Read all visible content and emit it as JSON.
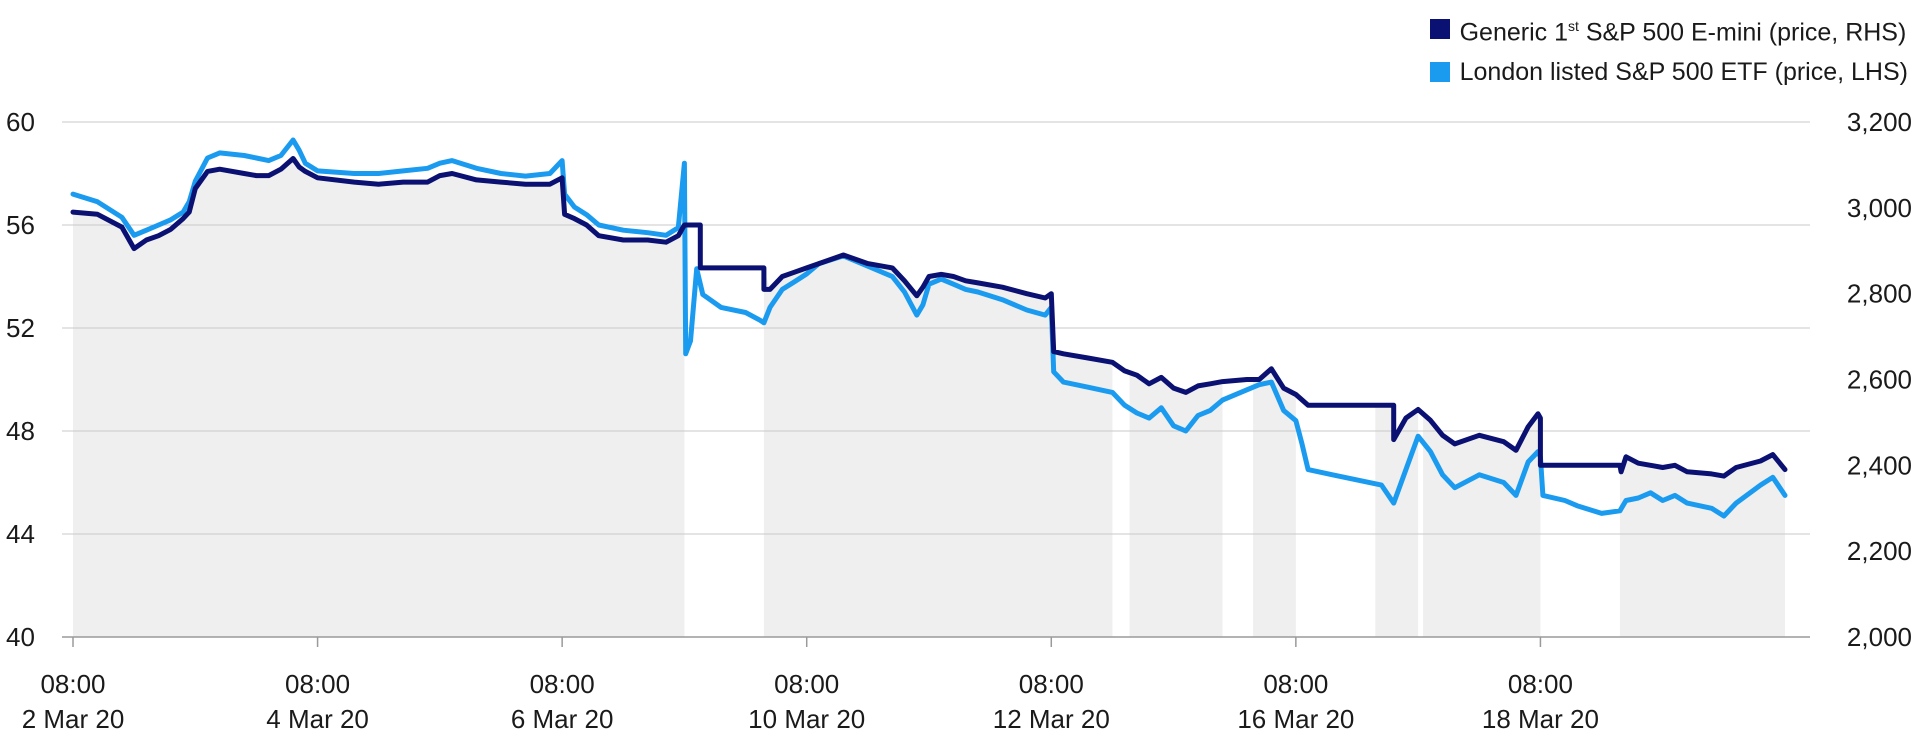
{
  "legend": [
    {
      "base": "Generic 1",
      "sup": "st",
      "rest": " S&P 500 E-mini (price, RHS)",
      "color": "#0a1172"
    },
    {
      "text": "London listed S&P 500 ETF (price, LHS)",
      "color": "#1b9bef"
    }
  ],
  "colors": {
    "grid": "#c8c8c8",
    "area": "#efefef",
    "axis": "#9a9a9a"
  },
  "chart_data": {
    "type": "line",
    "x_ticks": [
      {
        "day": 0,
        "time": "08:00",
        "date": "2 Mar 20"
      },
      {
        "day": 2,
        "time": "08:00",
        "date": "4 Mar 20"
      },
      {
        "day": 4,
        "time": "08:00",
        "date": "6 Mar 20"
      },
      {
        "day": 6,
        "time": "08:00",
        "date": "10 Mar 20"
      },
      {
        "day": 8,
        "time": "08:00",
        "date": "12 Mar 20"
      },
      {
        "day": 10,
        "time": "08:00",
        "date": "16 Mar 20"
      },
      {
        "day": 12,
        "time": "08:00",
        "date": "18 Mar 20"
      }
    ],
    "xlim": [
      0,
      14
    ],
    "y_left": {
      "ylim": [
        40,
        60
      ],
      "ticks": [
        "40",
        "44",
        "48",
        "52",
        "56",
        "60"
      ]
    },
    "y_right": {
      "ylim": [
        2000,
        3200
      ],
      "ticks": [
        "2,000",
        "2,200",
        "2,400",
        "2,600",
        "2,800",
        "3,000",
        "3,200"
      ]
    },
    "grid": true,
    "legend_position": "top-right",
    "series": [
      {
        "name": "Generic 1st S&P 500 E-mini (price, RHS)",
        "axis": "right",
        "points": [
          [
            0,
            2990
          ],
          [
            0.2,
            2985
          ],
          [
            0.4,
            2955
          ],
          [
            0.45,
            2930
          ],
          [
            0.5,
            2905
          ],
          [
            0.6,
            2925
          ],
          [
            0.7,
            2935
          ],
          [
            0.8,
            2950
          ],
          [
            0.9,
            2975
          ],
          [
            0.95,
            2990
          ],
          [
            1.0,
            3045
          ],
          [
            1.1,
            3085
          ],
          [
            1.2,
            3090
          ],
          [
            1.4,
            3080
          ],
          [
            1.5,
            3075
          ],
          [
            1.6,
            3075
          ],
          [
            1.7,
            3090
          ],
          [
            1.8,
            3115
          ],
          [
            1.85,
            3095
          ],
          [
            1.9,
            3085
          ],
          [
            2.0,
            3070
          ],
          [
            2.3,
            3060
          ],
          [
            2.5,
            3055
          ],
          [
            2.7,
            3060
          ],
          [
            2.9,
            3060
          ],
          [
            3.0,
            3075
          ],
          [
            3.1,
            3080
          ],
          [
            3.3,
            3065
          ],
          [
            3.5,
            3060
          ],
          [
            3.7,
            3055
          ],
          [
            3.9,
            3055
          ],
          [
            4.0,
            3070
          ],
          [
            4.02,
            2985
          ],
          [
            4.1,
            2975
          ],
          [
            4.2,
            2960
          ],
          [
            4.3,
            2935
          ],
          [
            4.5,
            2925
          ],
          [
            4.7,
            2925
          ],
          [
            4.85,
            2920
          ],
          [
            4.95,
            2935
          ],
          [
            5.0,
            2960
          ],
          [
            5.13,
            2960
          ],
          [
            5.13,
            2860
          ],
          [
            5.2,
            2860
          ],
          [
            5.4,
            2860
          ],
          [
            5.6,
            2860
          ],
          [
            5.65,
            2860
          ],
          [
            5.65,
            2810
          ],
          [
            5.7,
            2810
          ],
          [
            5.8,
            2840
          ],
          [
            5.9,
            2850
          ],
          [
            6.0,
            2860
          ],
          [
            6.1,
            2870
          ],
          [
            6.3,
            2890
          ],
          [
            6.5,
            2870
          ],
          [
            6.7,
            2860
          ],
          [
            6.8,
            2830
          ],
          [
            6.9,
            2795
          ],
          [
            6.95,
            2815
          ],
          [
            7.0,
            2840
          ],
          [
            7.1,
            2845
          ],
          [
            7.2,
            2840
          ],
          [
            7.3,
            2830
          ],
          [
            7.4,
            2825
          ],
          [
            7.6,
            2815
          ],
          [
            7.8,
            2800
          ],
          [
            7.95,
            2790
          ],
          [
            8.0,
            2800
          ],
          [
            8.02,
            2665
          ],
          [
            8.1,
            2660
          ],
          [
            8.3,
            2650
          ],
          [
            8.5,
            2640
          ],
          [
            8.6,
            2620
          ],
          [
            8.7,
            2610
          ],
          [
            8.8,
            2590
          ],
          [
            8.9,
            2605
          ],
          [
            9.0,
            2580
          ],
          [
            9.1,
            2570
          ],
          [
            9.2,
            2585
          ],
          [
            9.3,
            2590
          ],
          [
            9.4,
            2595
          ],
          [
            9.6,
            2600
          ],
          [
            9.7,
            2600
          ],
          [
            9.8,
            2625
          ],
          [
            9.9,
            2580
          ],
          [
            10.0,
            2565
          ],
          [
            10.1,
            2540
          ],
          [
            10.3,
            2540
          ],
          [
            10.5,
            2540
          ],
          [
            10.7,
            2540
          ],
          [
            10.8,
            2540
          ],
          [
            10.8,
            2460
          ],
          [
            10.9,
            2510
          ],
          [
            11.0,
            2530
          ],
          [
            11.1,
            2505
          ],
          [
            11.2,
            2470
          ],
          [
            11.3,
            2450
          ],
          [
            11.5,
            2470
          ],
          [
            11.7,
            2455
          ],
          [
            11.8,
            2435
          ],
          [
            11.9,
            2490
          ],
          [
            11.98,
            2520
          ],
          [
            12.0,
            2510
          ],
          [
            12.0,
            2400
          ],
          [
            12.3,
            2400
          ],
          [
            12.5,
            2400
          ],
          [
            12.65,
            2400
          ],
          [
            12.66,
            2385
          ],
          [
            12.7,
            2420
          ],
          [
            12.8,
            2405
          ],
          [
            12.9,
            2400
          ],
          [
            13.0,
            2395
          ],
          [
            13.1,
            2400
          ],
          [
            13.2,
            2385
          ],
          [
            13.4,
            2380
          ],
          [
            13.5,
            2375
          ],
          [
            13.6,
            2395
          ],
          [
            13.8,
            2410
          ],
          [
            13.9,
            2425
          ],
          [
            14.0,
            2390
          ]
        ]
      },
      {
        "name": "London listed S&P 500 ETF (price, LHS)",
        "axis": "left",
        "points": [
          [
            0,
            57.2
          ],
          [
            0.2,
            56.9
          ],
          [
            0.4,
            56.3
          ],
          [
            0.5,
            55.6
          ],
          [
            0.6,
            55.8
          ],
          [
            0.7,
            56.0
          ],
          [
            0.8,
            56.2
          ],
          [
            0.9,
            56.5
          ],
          [
            0.95,
            56.9
          ],
          [
            1.0,
            57.7
          ],
          [
            1.1,
            58.6
          ],
          [
            1.2,
            58.8
          ],
          [
            1.4,
            58.7
          ],
          [
            1.5,
            58.6
          ],
          [
            1.6,
            58.5
          ],
          [
            1.7,
            58.7
          ],
          [
            1.8,
            59.3
          ],
          [
            1.85,
            58.9
          ],
          [
            1.9,
            58.4
          ],
          [
            2.0,
            58.1
          ],
          [
            2.3,
            58.0
          ],
          [
            2.5,
            58.0
          ],
          [
            2.7,
            58.1
          ],
          [
            2.9,
            58.2
          ],
          [
            3.0,
            58.4
          ],
          [
            3.1,
            58.5
          ],
          [
            3.3,
            58.2
          ],
          [
            3.5,
            58.0
          ],
          [
            3.7,
            57.9
          ],
          [
            3.9,
            58.0
          ],
          [
            4.0,
            58.5
          ],
          [
            4.02,
            57.2
          ],
          [
            4.1,
            56.7
          ],
          [
            4.2,
            56.4
          ],
          [
            4.3,
            56.0
          ],
          [
            4.5,
            55.8
          ],
          [
            4.7,
            55.7
          ],
          [
            4.85,
            55.6
          ],
          [
            4.95,
            55.9
          ],
          [
            5.0,
            58.4
          ],
          [
            5.01,
            51.0
          ],
          [
            5.05,
            51.5
          ],
          [
            5.1,
            54.3
          ],
          [
            5.15,
            53.3
          ],
          [
            5.3,
            52.8
          ],
          [
            5.5,
            52.6
          ],
          [
            5.62,
            52.3
          ],
          [
            5.65,
            52.2
          ],
          [
            5.7,
            52.8
          ],
          [
            5.8,
            53.5
          ],
          [
            5.9,
            53.8
          ],
          [
            6.0,
            54.1
          ],
          [
            6.1,
            54.5
          ],
          [
            6.3,
            54.8
          ],
          [
            6.5,
            54.4
          ],
          [
            6.7,
            54.0
          ],
          [
            6.8,
            53.4
          ],
          [
            6.9,
            52.5
          ],
          [
            6.95,
            52.9
          ],
          [
            7.0,
            53.7
          ],
          [
            7.1,
            53.9
          ],
          [
            7.2,
            53.7
          ],
          [
            7.3,
            53.5
          ],
          [
            7.4,
            53.4
          ],
          [
            7.6,
            53.1
          ],
          [
            7.8,
            52.7
          ],
          [
            7.95,
            52.5
          ],
          [
            8.0,
            52.8
          ],
          [
            8.02,
            50.3
          ],
          [
            8.1,
            49.9
          ],
          [
            8.3,
            49.7
          ],
          [
            8.5,
            49.5
          ],
          [
            8.6,
            49.0
          ],
          [
            8.7,
            48.7
          ],
          [
            8.8,
            48.5
          ],
          [
            8.9,
            48.9
          ],
          [
            9.0,
            48.2
          ],
          [
            9.1,
            48.0
          ],
          [
            9.2,
            48.6
          ],
          [
            9.3,
            48.8
          ],
          [
            9.4,
            49.2
          ],
          [
            9.6,
            49.6
          ],
          [
            9.7,
            49.8
          ],
          [
            9.8,
            49.9
          ],
          [
            9.9,
            48.8
          ],
          [
            10.0,
            48.4
          ],
          [
            10.05,
            47.5
          ],
          [
            10.1,
            46.5
          ],
          [
            10.3,
            46.3
          ],
          [
            10.5,
            46.1
          ],
          [
            10.7,
            45.9
          ],
          [
            10.8,
            45.2
          ],
          [
            10.9,
            46.5
          ],
          [
            11.0,
            47.8
          ],
          [
            11.1,
            47.2
          ],
          [
            11.2,
            46.3
          ],
          [
            11.3,
            45.8
          ],
          [
            11.5,
            46.3
          ],
          [
            11.7,
            46.0
          ],
          [
            11.8,
            45.5
          ],
          [
            11.9,
            46.8
          ],
          [
            11.98,
            47.2
          ],
          [
            12.0,
            47.0
          ],
          [
            12.02,
            45.5
          ],
          [
            12.2,
            45.3
          ],
          [
            12.3,
            45.1
          ],
          [
            12.5,
            44.8
          ],
          [
            12.65,
            44.9
          ],
          [
            12.7,
            45.3
          ],
          [
            12.8,
            45.4
          ],
          [
            12.9,
            45.6
          ],
          [
            13.0,
            45.3
          ],
          [
            13.1,
            45.5
          ],
          [
            13.2,
            45.2
          ],
          [
            13.4,
            45.0
          ],
          [
            13.5,
            44.7
          ],
          [
            13.6,
            45.2
          ],
          [
            13.8,
            45.9
          ],
          [
            13.9,
            46.2
          ],
          [
            14.0,
            45.5
          ]
        ]
      }
    ],
    "shaded_area": {
      "series": "Generic 1st S&P 500 E-mini (price, RHS)",
      "gaps": [
        [
          5.0,
          5.65
        ],
        [
          8.5,
          8.64
        ],
        [
          9.4,
          9.65
        ],
        [
          10.0,
          10.65
        ],
        [
          11.0,
          11.04
        ],
        [
          12.0,
          12.65
        ]
      ]
    }
  }
}
